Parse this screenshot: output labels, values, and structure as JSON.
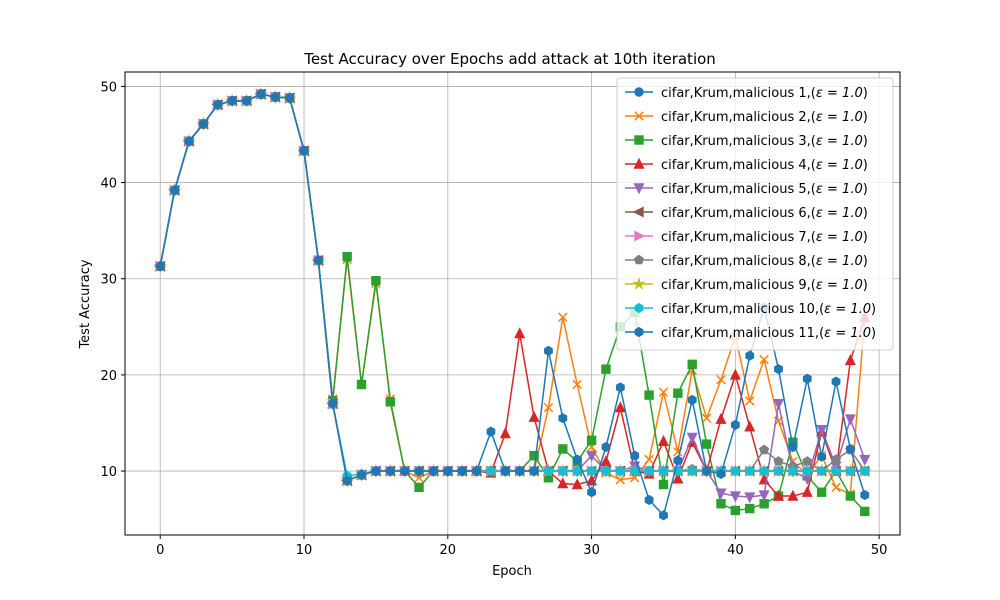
{
  "chart_data": {
    "type": "line",
    "title": "Test Accuracy over Epochs add attack at 10th iteration",
    "xlabel": "Epoch",
    "ylabel": "Test Accuracy",
    "xlim": [
      -2.45,
      51.45
    ],
    "ylim": [
      3.35,
      51.5
    ],
    "xticks": [
      0,
      10,
      20,
      30,
      40,
      50
    ],
    "yticks": [
      10,
      20,
      30,
      40,
      50
    ],
    "grid": true,
    "legend_position": "top-right",
    "x": [
      0,
      1,
      2,
      3,
      4,
      5,
      6,
      7,
      8,
      9,
      10,
      11,
      12,
      13,
      14,
      15,
      16,
      17,
      18,
      19,
      20,
      21,
      22,
      23,
      24,
      25,
      26,
      27,
      28,
      29,
      30,
      31,
      32,
      33,
      34,
      35,
      36,
      37,
      38,
      39,
      40,
      41,
      42,
      43,
      44,
      45,
      46,
      47,
      48,
      49
    ],
    "series": [
      {
        "name": "cifar,Krum,malicious 1,(",
        "color": "#1f77b4",
        "marker": "circle",
        "values": [
          31.3,
          39.2,
          44.3,
          46.1,
          48.1,
          48.5,
          48.5,
          49.2,
          48.9,
          48.8,
          43.3,
          31.9,
          17.0,
          9.0,
          9.6,
          10.0,
          10.0,
          10.0,
          10.0,
          10.0,
          10.0,
          10.0,
          10.0,
          10.0,
          10.0,
          10.0,
          10.0,
          10.0,
          10.0,
          10.0,
          10.0,
          10.0,
          10.0,
          10.0,
          10.0,
          10.0,
          10.0,
          10.0,
          10.0,
          10.0,
          10.0,
          10.0,
          10.0,
          10.0,
          10.0,
          10.0,
          10.0,
          10.0,
          10.0,
          10.0
        ]
      },
      {
        "name": "cifar,Krum,malicious 2,(",
        "color": "#ff7f0e",
        "marker": "x",
        "values": [
          31.3,
          39.2,
          44.3,
          46.1,
          48.1,
          48.5,
          48.5,
          49.2,
          48.9,
          48.8,
          43.3,
          31.9,
          17.5,
          32.0,
          19.0,
          29.5,
          17.5,
          10.0,
          9.3,
          10.0,
          10.0,
          10.0,
          10.0,
          10.0,
          10.0,
          10.0,
          10.0,
          16.6,
          26.0,
          19.0,
          12.5,
          9.8,
          9.1,
          9.3,
          11.2,
          18.2,
          12.0,
          20.5,
          15.5,
          19.5,
          24.0,
          17.3,
          21.6,
          15.2,
          11.0,
          9.6,
          11.6,
          8.3,
          7.6,
          26.0
        ]
      },
      {
        "name": "cifar,Krum,malicious 3,(",
        "color": "#2ca02c",
        "marker": "square",
        "values": [
          31.3,
          39.2,
          44.3,
          46.1,
          48.1,
          48.5,
          48.5,
          49.2,
          48.9,
          48.8,
          43.3,
          31.9,
          17.3,
          32.3,
          19.0,
          29.8,
          17.2,
          10.0,
          8.3,
          10.0,
          10.0,
          10.0,
          10.0,
          10.0,
          10.0,
          10.0,
          11.6,
          9.3,
          12.3,
          11.0,
          13.2,
          20.6,
          25.0,
          26.5,
          17.9,
          8.6,
          18.1,
          21.1,
          12.8,
          6.6,
          5.9,
          6.1,
          6.6,
          7.4,
          13.0,
          9.5,
          7.8,
          10.0,
          7.4,
          5.8
        ]
      },
      {
        "name": "cifar,Krum,malicious 4,(",
        "color": "#d62728",
        "marker": "triangle-up",
        "values": [
          31.3,
          39.2,
          44.3,
          46.1,
          48.1,
          48.5,
          48.5,
          49.2,
          48.9,
          48.8,
          43.3,
          31.9,
          17.0,
          9.0,
          9.6,
          10.0,
          10.0,
          10.0,
          10.0,
          10.0,
          10.0,
          10.0,
          10.0,
          9.8,
          13.9,
          24.3,
          15.6,
          10.0,
          8.7,
          8.6,
          9.0,
          11.0,
          16.6,
          10.0,
          9.7,
          13.1,
          9.2,
          13.0,
          10.0,
          15.4,
          20.0,
          14.6,
          9.1,
          7.4,
          7.4,
          7.8,
          14.1,
          10.0,
          21.5,
          26.0
        ]
      },
      {
        "name": "cifar,Krum,malicious 5,(",
        "color": "#9467bd",
        "marker": "triangle-down",
        "values": [
          31.3,
          39.2,
          44.3,
          46.1,
          48.1,
          48.5,
          48.5,
          49.2,
          48.9,
          48.8,
          43.3,
          31.9,
          17.0,
          9.0,
          9.6,
          10.0,
          10.0,
          10.0,
          10.0,
          10.0,
          10.0,
          10.0,
          10.0,
          10.0,
          10.0,
          10.0,
          10.0,
          10.0,
          10.0,
          10.0,
          11.6,
          10.0,
          10.0,
          10.5,
          10.0,
          10.0,
          10.0,
          13.5,
          10.0,
          7.7,
          7.4,
          7.3,
          7.5,
          17.0,
          10.0,
          9.2,
          14.3,
          10.5,
          15.4,
          11.2
        ]
      },
      {
        "name": "cifar,Krum,malicious 6,(",
        "color": "#8c564b",
        "marker": "triangle-left",
        "values": [
          31.3,
          39.2,
          44.3,
          46.1,
          48.1,
          48.5,
          48.5,
          49.2,
          48.9,
          48.8,
          43.3,
          31.9,
          17.0,
          9.0,
          9.6,
          10.0,
          10.0,
          10.0,
          10.0,
          10.0,
          10.0,
          10.0,
          10.0,
          10.0,
          10.0,
          10.0,
          10.0,
          10.0,
          10.0,
          10.0,
          10.0,
          10.0,
          10.0,
          10.0,
          10.0,
          10.0,
          10.0,
          10.0,
          10.0,
          10.0,
          10.0,
          10.0,
          10.0,
          10.0,
          10.0,
          10.0,
          10.0,
          10.0,
          10.0,
          10.0
        ]
      },
      {
        "name": "cifar,Krum,malicious 7,(",
        "color": "#e377c2",
        "marker": "triangle-right",
        "values": [
          31.3,
          39.2,
          44.3,
          46.1,
          48.1,
          48.5,
          48.5,
          49.2,
          48.9,
          48.8,
          43.3,
          31.9,
          17.0,
          9.0,
          9.6,
          10.0,
          10.0,
          10.0,
          10.0,
          10.0,
          10.0,
          10.0,
          10.0,
          10.0,
          10.0,
          10.0,
          10.0,
          10.0,
          10.0,
          10.0,
          10.0,
          10.0,
          10.0,
          10.0,
          10.0,
          10.0,
          10.0,
          10.0,
          10.0,
          10.0,
          10.0,
          10.0,
          10.0,
          10.0,
          10.0,
          10.0,
          10.0,
          10.0,
          10.0,
          10.0
        ]
      },
      {
        "name": "cifar,Krum,malicious 8,(",
        "color": "#7f7f7f",
        "marker": "pentagon",
        "values": [
          31.3,
          39.2,
          44.3,
          46.1,
          48.1,
          48.5,
          48.5,
          49.2,
          48.9,
          48.8,
          43.3,
          31.9,
          17.0,
          9.0,
          9.6,
          10.0,
          10.0,
          10.0,
          10.0,
          10.0,
          10.0,
          10.0,
          10.0,
          10.0,
          10.0,
          10.0,
          10.0,
          10.0,
          10.0,
          10.0,
          10.0,
          10.0,
          10.0,
          10.0,
          10.0,
          10.0,
          10.0,
          10.2,
          10.0,
          10.0,
          10.0,
          10.0,
          12.2,
          11.0,
          10.5,
          11.0,
          10.0,
          11.2,
          12.2,
          10.0
        ]
      },
      {
        "name": "cifar,Krum,malicious 9,(",
        "color": "#bcbd22",
        "marker": "star",
        "values": [
          31.3,
          39.2,
          44.3,
          46.1,
          48.1,
          48.5,
          48.5,
          49.2,
          48.9,
          48.8,
          43.3,
          31.9,
          17.0,
          9.0,
          9.6,
          10.0,
          10.0,
          10.0,
          10.0,
          10.0,
          10.0,
          10.0,
          10.0,
          10.0,
          10.0,
          10.0,
          10.0,
          10.0,
          10.0,
          10.0,
          10.0,
          10.0,
          10.0,
          10.0,
          10.0,
          10.0,
          10.0,
          10.0,
          10.0,
          10.0,
          10.0,
          10.0,
          10.0,
          10.0,
          10.0,
          10.0,
          10.0,
          10.0,
          10.0,
          10.0
        ]
      },
      {
        "name": "cifar,Krum,malicious 10,(",
        "color": "#17becf",
        "marker": "hexagon",
        "values": [
          31.3,
          39.2,
          44.3,
          46.1,
          48.1,
          48.5,
          48.5,
          49.2,
          48.9,
          48.8,
          43.3,
          31.9,
          17.0,
          9.5,
          9.7,
          10.0,
          10.0,
          10.0,
          10.0,
          10.0,
          10.0,
          10.0,
          10.0,
          10.0,
          10.0,
          10.0,
          10.0,
          10.0,
          10.0,
          10.0,
          10.0,
          10.0,
          10.0,
          10.0,
          10.0,
          10.0,
          10.0,
          10.0,
          10.0,
          10.0,
          10.0,
          10.0,
          10.0,
          10.0,
          10.0,
          10.0,
          10.0,
          10.0,
          10.0,
          10.0
        ]
      },
      {
        "name": "cifar,Krum,malicious 11,(",
        "color": "#1f77b4",
        "marker": "hexagon",
        "values": [
          31.3,
          39.2,
          44.3,
          46.1,
          48.1,
          48.5,
          48.5,
          49.2,
          48.9,
          48.8,
          43.3,
          31.9,
          17.0,
          9.0,
          9.6,
          10.0,
          10.0,
          10.0,
          10.0,
          10.0,
          10.0,
          10.0,
          10.0,
          14.1,
          10.0,
          10.0,
          10.0,
          22.5,
          15.5,
          11.2,
          7.8,
          12.5,
          18.7,
          11.6,
          7.0,
          5.4,
          11.1,
          17.4,
          10.0,
          9.7,
          14.8,
          22.0,
          27.0,
          20.6,
          12.5,
          19.6,
          11.5,
          19.3,
          12.3,
          7.5
        ]
      }
    ],
    "legend_epsilon": "ε = 1.0",
    "legend_close": ")"
  }
}
